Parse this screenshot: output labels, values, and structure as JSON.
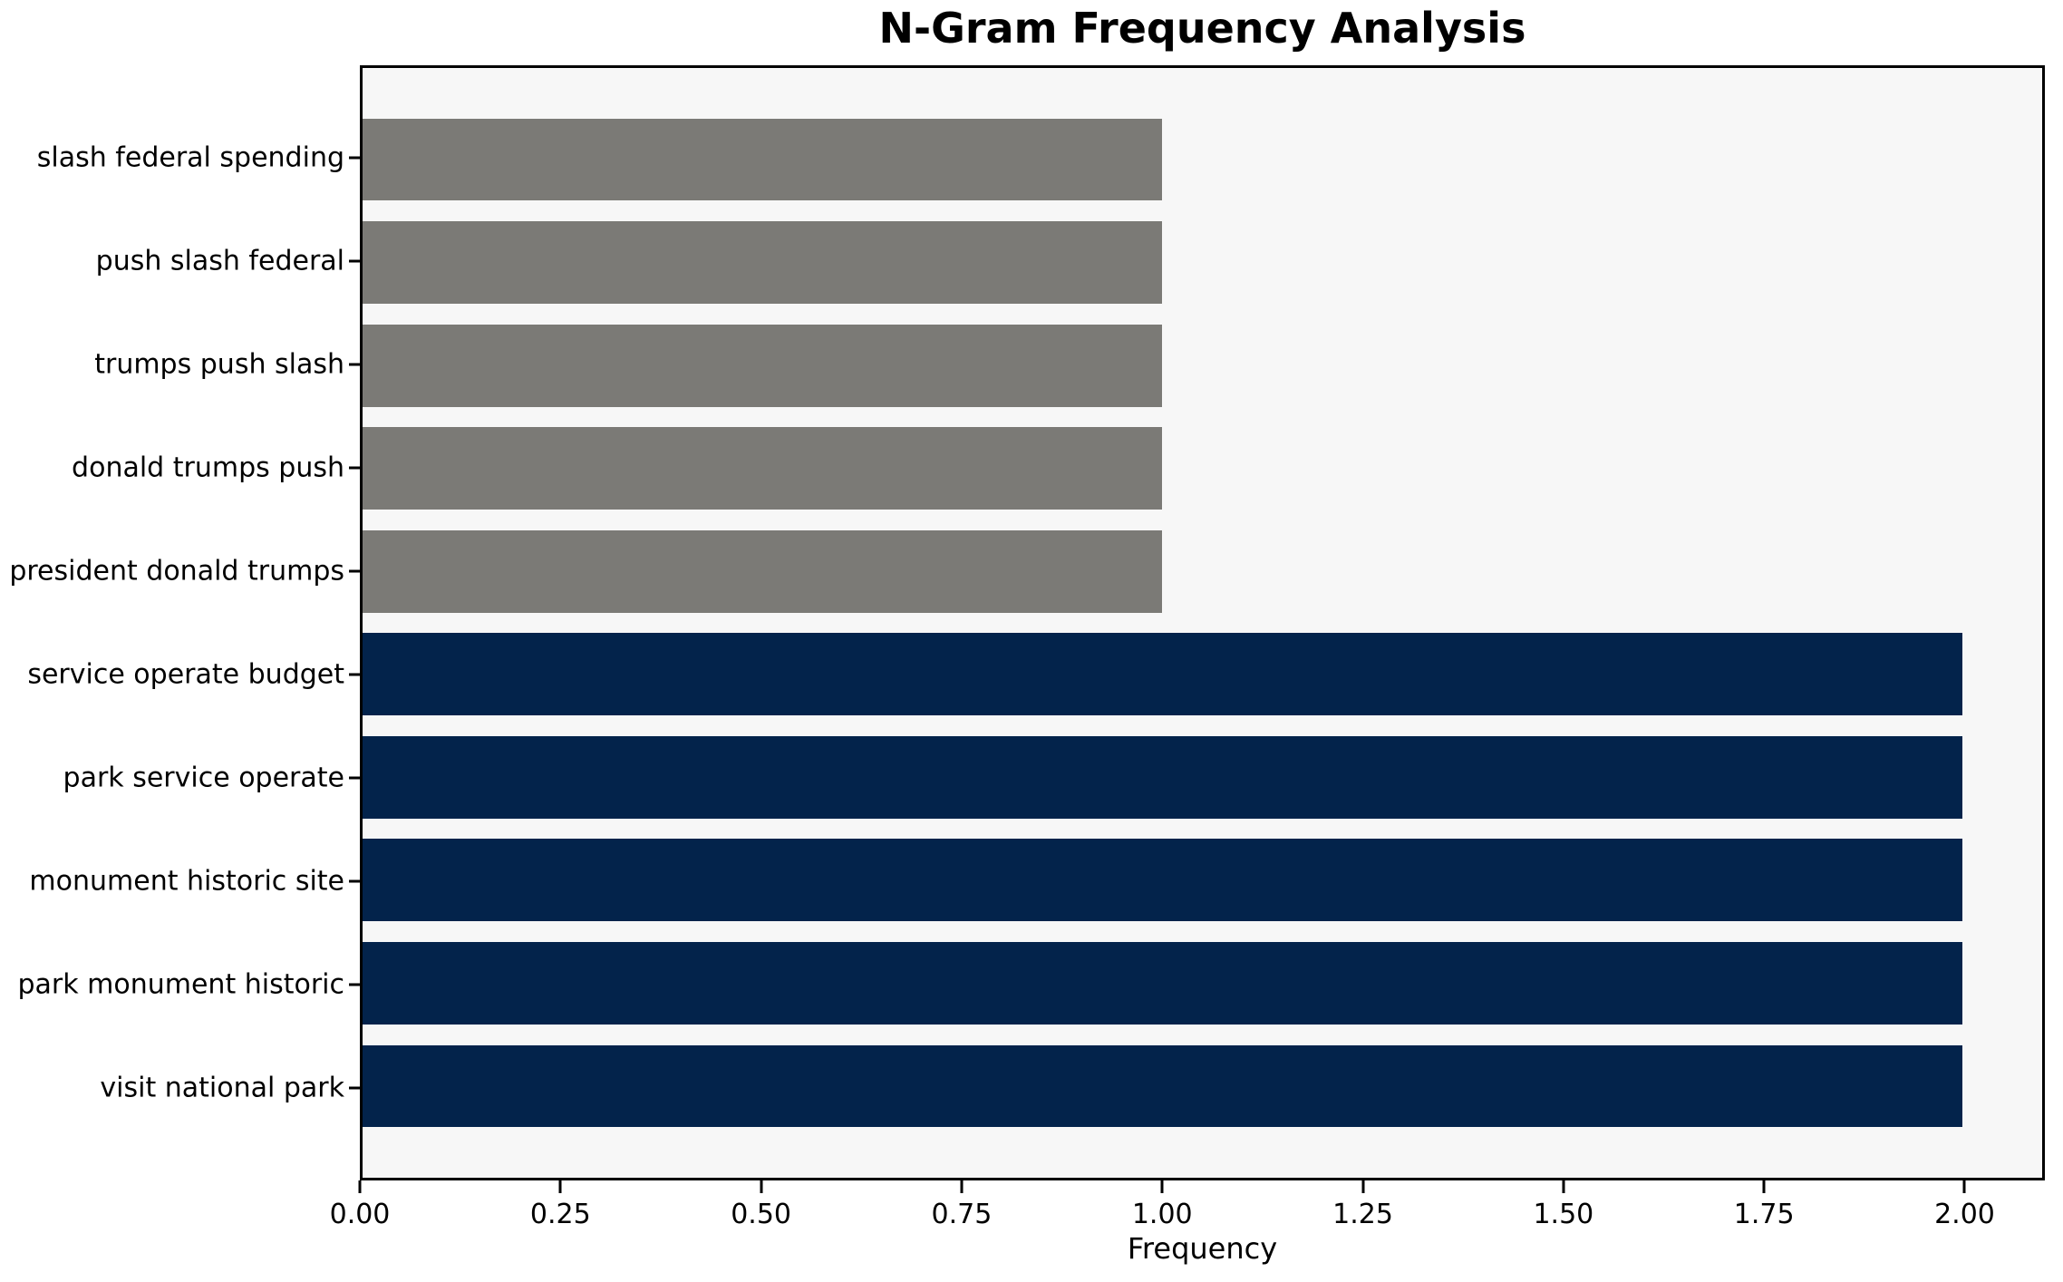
{
  "chart_data": {
    "type": "bar",
    "orientation": "horizontal",
    "title": "N-Gram Frequency Analysis",
    "xlabel": "Frequency",
    "ylabel": "",
    "categories": [
      "visit national park",
      "park monument historic",
      "monument historic site",
      "park service operate",
      "service operate budget",
      "president donald trumps",
      "donald trumps push",
      "trumps push slash",
      "push slash federal",
      "slash federal spending"
    ],
    "values": [
      2,
      2,
      2,
      2,
      2,
      1,
      1,
      1,
      1,
      1
    ],
    "bar_colors": [
      "#03234B",
      "#03234B",
      "#03234B",
      "#03234B",
      "#03234B",
      "#7B7A76",
      "#7B7A76",
      "#7B7A76",
      "#7B7A76",
      "#7B7A76"
    ],
    "xlim": [
      0,
      2.1
    ],
    "xtick_values": [
      0,
      0.25,
      0.5,
      0.75,
      1.0,
      1.25,
      1.5,
      1.75,
      2.0
    ],
    "xtick_labels": [
      "0.00",
      "0.25",
      "0.50",
      "0.75",
      "1.00",
      "1.25",
      "1.50",
      "1.75",
      "2.00"
    ],
    "grid": false,
    "legend": "none",
    "plot_background": "#F7F7F7",
    "figure_background": "#FFFFFF",
    "spine_color": "#000000"
  }
}
